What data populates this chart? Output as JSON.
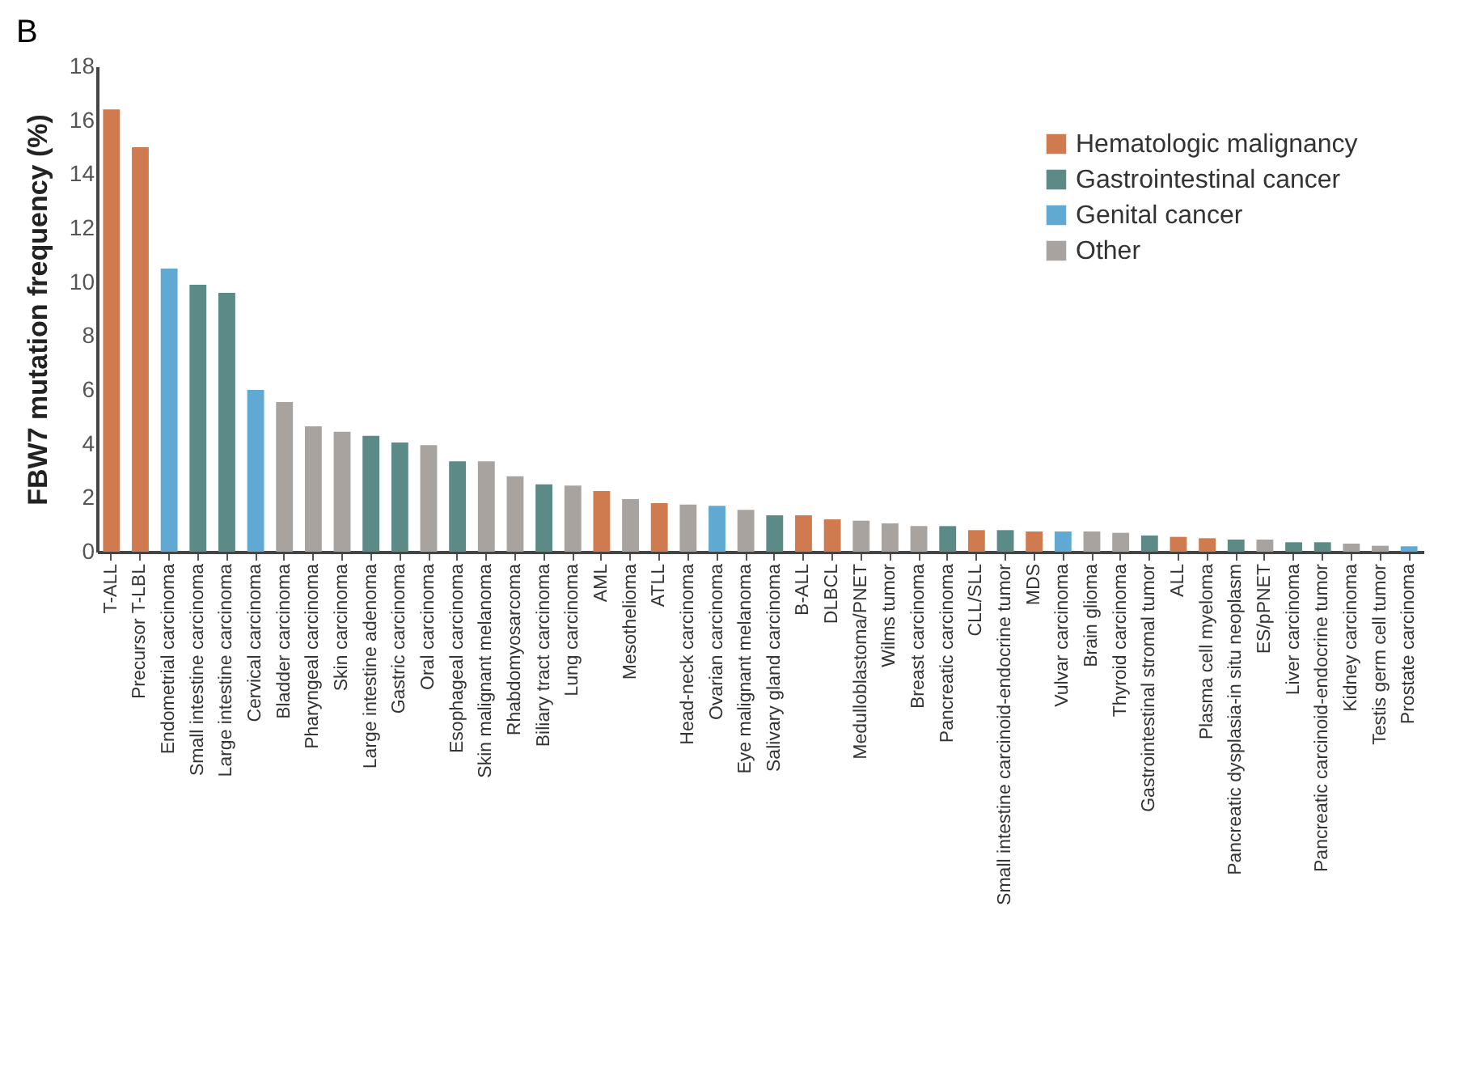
{
  "chart_data": {
    "type": "bar",
    "annotations": [
      "B"
    ],
    "ylabel": "FBW7 mutation frequency (%)",
    "categories": [
      "T-ALL",
      "Precursor T-LBL",
      "Endometrial carcinoma",
      "Small intestine carcinoma",
      "Large intestine carcinoma",
      "Cervical carcinoma",
      "Bladder carcinoma",
      "Pharyngeal carcinoma",
      "Skin carcinoma",
      "Large intestine adenoma",
      "Gastric carcinoma",
      "Oral carcinoma",
      "Esophageal carcinoma",
      "Skin malignant melanoma",
      "Rhabdomyosarcoma",
      "Biliary tract carcinoma",
      "Lung carcinoma",
      "AML",
      "Mesothelioma",
      "ATLL",
      "Head-neck carcinoma",
      "Ovarian carcinoma",
      "Eye malignant melanoma",
      "Salivary gland carcinoma",
      "B-ALL",
      "DLBCL",
      "Medulloblastoma/PNET",
      "Wilms tumor",
      "Breast carcinoma",
      "Pancreatic carcinoma",
      "CLL/SLL",
      "Small intestine carcinoid-endocrine tumor",
      "MDS",
      "Vulvar carcinoma",
      "Brain glioma",
      "Thyroid carcinoma",
      "Gastrointestinal stromal tumor",
      "ALL",
      "Plasma cell myeloma",
      "Pancreatic dysplasia-in situ neoplasm",
      "ES/pPNET",
      "Liver carcinoma",
      "Pancreatic carcinoid-endocrine tumor",
      "Kidney carcinoma",
      "Testis germ cell tumor",
      "Prostate carcinoma"
    ],
    "series": [
      {
        "name": "Hematologic malignancy",
        "color": "#d07a4f",
        "values": [
          16.4,
          15.0,
          null,
          null,
          null,
          null,
          null,
          null,
          null,
          null,
          null,
          null,
          null,
          null,
          null,
          null,
          null,
          2.25,
          null,
          1.8,
          null,
          null,
          null,
          null,
          1.35,
          1.2,
          null,
          null,
          null,
          null,
          0.8,
          null,
          0.75,
          null,
          null,
          null,
          null,
          0.55,
          0.5,
          null,
          null,
          null,
          null,
          null,
          null,
          null
        ]
      },
      {
        "name": "Gastrointestinal cancer",
        "color": "#5b8a87",
        "values": [
          null,
          null,
          null,
          9.9,
          9.6,
          null,
          null,
          null,
          null,
          4.3,
          4.05,
          null,
          3.35,
          null,
          null,
          2.5,
          null,
          null,
          null,
          null,
          null,
          null,
          null,
          1.35,
          null,
          null,
          null,
          null,
          null,
          0.95,
          null,
          0.8,
          null,
          null,
          null,
          null,
          0.6,
          null,
          null,
          0.45,
          null,
          0.35,
          0.35,
          null,
          null,
          null
        ]
      },
      {
        "name": "Genital cancer",
        "color": "#5fa9d2",
        "values": [
          null,
          null,
          10.5,
          null,
          null,
          6.0,
          null,
          null,
          null,
          null,
          null,
          null,
          null,
          null,
          null,
          null,
          null,
          null,
          null,
          null,
          null,
          1.7,
          null,
          null,
          null,
          null,
          null,
          null,
          null,
          null,
          null,
          null,
          null,
          0.75,
          null,
          null,
          null,
          null,
          null,
          null,
          null,
          null,
          null,
          null,
          null,
          0.2
        ]
      },
      {
        "name": "Other",
        "color": "#a8a39e",
        "values": [
          null,
          null,
          null,
          null,
          null,
          null,
          5.55,
          4.65,
          4.45,
          null,
          null,
          3.95,
          null,
          3.35,
          2.8,
          null,
          2.45,
          null,
          1.95,
          null,
          1.75,
          null,
          1.55,
          null,
          null,
          null,
          1.15,
          1.05,
          0.95,
          null,
          null,
          null,
          null,
          null,
          0.75,
          0.7,
          null,
          null,
          null,
          null,
          0.45,
          null,
          null,
          0.3,
          0.22,
          null
        ]
      }
    ],
    "ylim": [
      0,
      18
    ],
    "yticks": [
      0,
      2,
      4,
      6,
      8,
      10,
      12,
      14,
      16,
      18
    ],
    "legend": "top right",
    "grid": false
  }
}
